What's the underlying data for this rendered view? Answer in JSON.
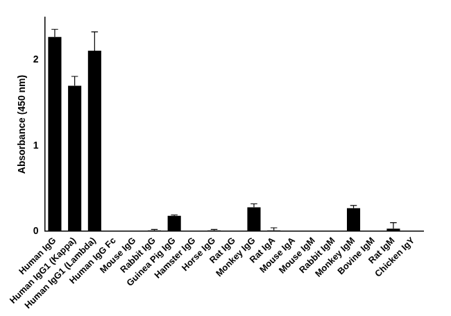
{
  "chart_data": {
    "type": "bar",
    "y_label": "Absorbance (450 nm)",
    "categories": [
      "Human IgG",
      "Human IgG1 (Kappa)",
      "Human IgG1 (Lambda)",
      "Human IgG Fc",
      "Mouse IgG",
      "Rabbit IgG",
      "Guinea Pig IgG",
      "Hamster IgG",
      "Horse IgG",
      "Rat IgG",
      "Monkey IgG",
      "Rat IgA",
      "Mouse IgA",
      "Mouse IgM",
      "Rabbit IgM",
      "Monkey IgM",
      "Bovine IgM",
      "Rat IgM",
      "Chicken IgY"
    ],
    "values": [
      2.27,
      1.7,
      2.11,
      0.0,
      0.0,
      0.01,
      0.18,
      0.0,
      0.01,
      0.0,
      0.28,
      0.01,
      0.0,
      0.0,
      0.0,
      0.27,
      0.0,
      0.03,
      0.0
    ],
    "errors": [
      0.09,
      0.11,
      0.22,
      0.0,
      0.0,
      0.01,
      0.01,
      0.0,
      0.01,
      0.0,
      0.04,
      0.03,
      0.0,
      0.0,
      0.0,
      0.03,
      0.0,
      0.07,
      0.0
    ],
    "color": "#000000",
    "ylim": [
      0,
      2.5
    ],
    "yticks": [
      0,
      1,
      2
    ],
    "grid": false
  }
}
